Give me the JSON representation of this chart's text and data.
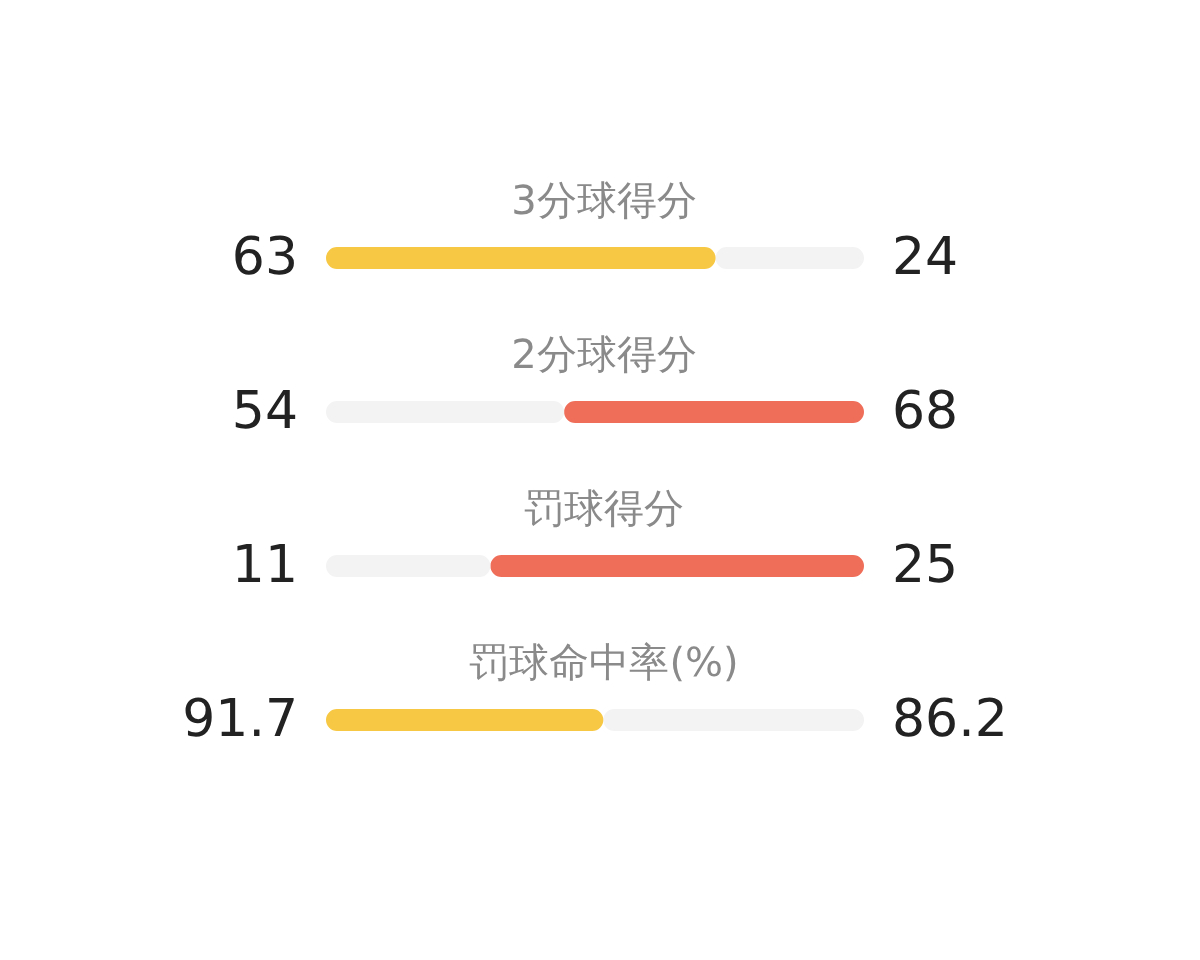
{
  "chart_data": [
    {
      "type": "bar",
      "orientation": "horizontal",
      "stacked": true,
      "title": "3分球得分",
      "categories": [
        null
      ],
      "xlim": [
        0,
        87
      ],
      "tick_labels": false,
      "data_labels": true,
      "series": [
        {
          "colors": [
            "#f7c844"
          ],
          "values": [
            63
          ]
        },
        {
          "colors": [
            "#f3f3f3"
          ],
          "values": [
            24
          ]
        }
      ]
    },
    {
      "type": "bar",
      "orientation": "horizontal",
      "stacked": true,
      "title": "2分球得分",
      "categories": [
        null
      ],
      "xlim": [
        0,
        122
      ],
      "tick_labels": false,
      "data_labels": true,
      "series": [
        {
          "colors": [
            "#f3f3f3"
          ],
          "values": [
            54
          ]
        },
        {
          "colors": [
            "#ef6e5a"
          ],
          "values": [
            68
          ]
        }
      ]
    },
    {
      "type": "bar",
      "orientation": "horizontal",
      "stacked": true,
      "title": "罚球得分",
      "categories": [
        null
      ],
      "xlim": [
        0,
        36
      ],
      "tick_labels": false,
      "data_labels": true,
      "series": [
        {
          "colors": [
            "#f3f3f3"
          ],
          "values": [
            11
          ]
        },
        {
          "colors": [
            "#ef6e5a"
          ],
          "values": [
            25
          ]
        }
      ]
    },
    {
      "type": "bar",
      "orientation": "horizontal",
      "stacked": true,
      "title": "罚球命中率(%)",
      "categories": [
        null
      ],
      "xlim": [
        0,
        177.9
      ],
      "tick_labels": false,
      "data_labels": true,
      "series": [
        {
          "colors": [
            "#f7c844"
          ],
          "values": [
            91.7
          ]
        },
        {
          "colors": [
            "#f3f3f3"
          ],
          "values": [
            86.2
          ]
        }
      ]
    }
  ]
}
